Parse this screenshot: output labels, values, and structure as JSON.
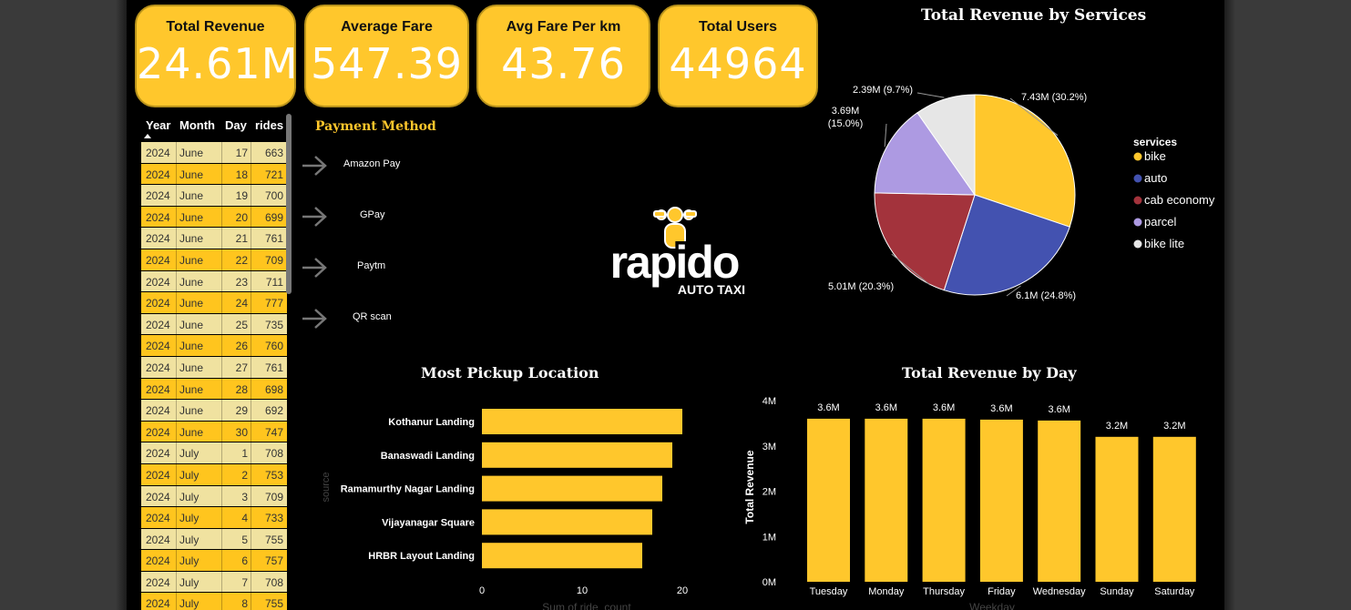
{
  "colors": {
    "accent": "#ffc72c",
    "bike": "#ffc72c",
    "auto": "#4352b0",
    "cab_economy": "#a3333c",
    "parcel": "#ad9ae2",
    "bike_lite": "#e6e6e6",
    "background": "#000000"
  },
  "kpis": [
    {
      "label": "Total Revenue",
      "value": "24.61M"
    },
    {
      "label": "Average Fare",
      "value": "547.39"
    },
    {
      "label": "Avg Fare Per km",
      "value": "43.76"
    },
    {
      "label": "Total Users",
      "value": "44964"
    }
  ],
  "table": {
    "headers": [
      "Year",
      "Month",
      "Day",
      "rides"
    ],
    "sort_icon": "sort-ascending-icon",
    "rows": [
      [
        "2024",
        "June",
        "17",
        "663"
      ],
      [
        "2024",
        "June",
        "18",
        "721"
      ],
      [
        "2024",
        "June",
        "19",
        "700"
      ],
      [
        "2024",
        "June",
        "20",
        "699"
      ],
      [
        "2024",
        "June",
        "21",
        "761"
      ],
      [
        "2024",
        "June",
        "22",
        "709"
      ],
      [
        "2024",
        "June",
        "23",
        "711"
      ],
      [
        "2024",
        "June",
        "24",
        "777"
      ],
      [
        "2024",
        "June",
        "25",
        "735"
      ],
      [
        "2024",
        "June",
        "26",
        "760"
      ],
      [
        "2024",
        "June",
        "27",
        "761"
      ],
      [
        "2024",
        "June",
        "28",
        "698"
      ],
      [
        "2024",
        "June",
        "29",
        "692"
      ],
      [
        "2024",
        "June",
        "30",
        "747"
      ],
      [
        "2024",
        "July",
        "1",
        "708"
      ],
      [
        "2024",
        "July",
        "2",
        "753"
      ],
      [
        "2024",
        "July",
        "3",
        "709"
      ],
      [
        "2024",
        "July",
        "4",
        "733"
      ],
      [
        "2024",
        "July",
        "5",
        "755"
      ],
      [
        "2024",
        "July",
        "6",
        "757"
      ],
      [
        "2024",
        "July",
        "7",
        "708"
      ],
      [
        "2024",
        "July",
        "8",
        "755"
      ]
    ]
  },
  "payment": {
    "title": "Payment Method",
    "arrow_icon": "arrow-right-icon",
    "items": [
      "Amazon Pay",
      "GPay",
      "Paytm",
      "QR scan"
    ]
  },
  "logo": {
    "main": "rapido",
    "sub": "AUTO TAXI"
  },
  "chart_data": [
    {
      "type": "pie",
      "title": "Total Revenue by Services",
      "legend_title": "services",
      "legend_position": "right",
      "slices": [
        {
          "name": "bike",
          "value": 7.43,
          "label": "7.43M (30.2%)",
          "color": "#ffc72c"
        },
        {
          "name": "auto",
          "value": 6.1,
          "label": "6.1M (24.8%)",
          "color": "#4352b0"
        },
        {
          "name": "cab economy",
          "value": 5.01,
          "label": "5.01M (20.3%)",
          "color": "#a3333c"
        },
        {
          "name": "parcel",
          "value": 3.69,
          "label": "3.69M (15.0%)",
          "color": "#ad9ae2"
        },
        {
          "name": "bike lite",
          "value": 2.39,
          "label": "2.39M (9.7%)",
          "color": "#e6e6e6"
        }
      ]
    },
    {
      "type": "bar",
      "orientation": "horizontal",
      "title": "Most Pickup Location",
      "ylabel": "source",
      "xlabel": "Sum of ride_count",
      "categories": [
        "Kothanur Landing",
        "Banaswadi Landing",
        "Ramamurthy Nagar Landing",
        "Vijayanagar Square",
        "HRBR Layout Landing"
      ],
      "values": [
        20,
        19,
        18,
        17,
        16
      ],
      "xticks": [
        "0",
        "10",
        "20"
      ],
      "xlim": [
        0,
        21
      ]
    },
    {
      "type": "bar",
      "title": "Total Revenue by Day",
      "ylabel": "Total Revenue",
      "xlabel": "Weekday",
      "categories": [
        "Tuesday",
        "Monday",
        "Thursday",
        "Friday",
        "Wednesday",
        "Sunday",
        "Saturday"
      ],
      "values": [
        3.6,
        3.6,
        3.6,
        3.58,
        3.56,
        3.2,
        3.2
      ],
      "data_labels": [
        "3.6M",
        "3.6M",
        "3.6M",
        "3.6M",
        "3.6M",
        "3.2M",
        "3.2M"
      ],
      "yticks": [
        "0M",
        "1M",
        "2M",
        "3M",
        "4M"
      ],
      "ylim": [
        0,
        4
      ]
    }
  ]
}
